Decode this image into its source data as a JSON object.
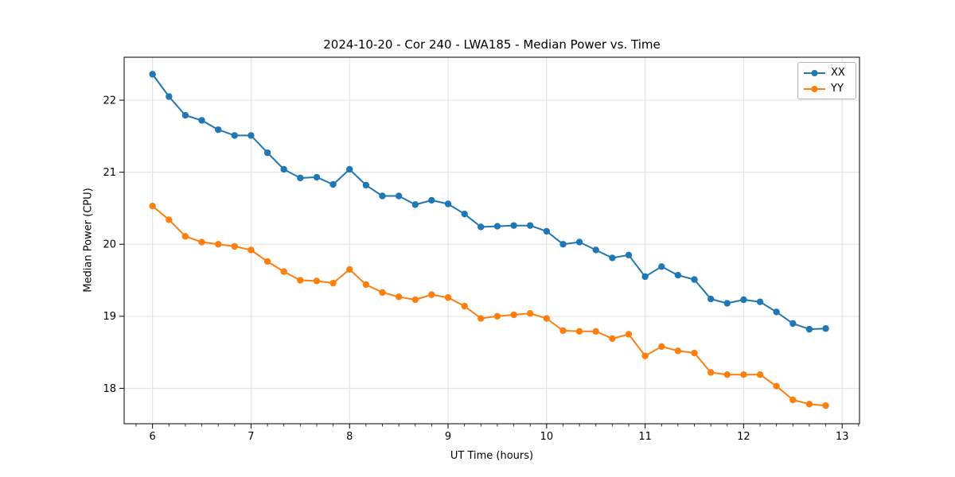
{
  "chart_data": {
    "type": "line",
    "title": "2024-10-20 - Cor 240 - LWA185 - Median Power vs. Time",
    "xlabel": "UT Time (hours)",
    "ylabel": "Median Power (CPU)",
    "xlim": [
      5.712,
      13.176
    ],
    "ylim": [
      17.508,
      22.596
    ],
    "xticks": [
      6,
      7,
      8,
      9,
      10,
      11,
      12,
      13
    ],
    "yticks": [
      18,
      19,
      20,
      21,
      22
    ],
    "x_minor_per_major": 6,
    "grid": true,
    "grid_color": "#e0e0e0",
    "spine_color": "#000000",
    "legend_position": "upper right",
    "x": [
      6.0,
      6.167,
      6.333,
      6.5,
      6.667,
      6.833,
      7.0,
      7.167,
      7.333,
      7.5,
      7.667,
      7.833,
      8.0,
      8.167,
      8.333,
      8.5,
      8.667,
      8.833,
      9.0,
      9.167,
      9.333,
      9.5,
      9.667,
      9.833,
      10.0,
      10.167,
      10.333,
      10.5,
      10.667,
      10.833,
      11.0,
      11.167,
      11.333,
      11.5,
      11.667,
      11.833,
      12.0,
      12.167,
      12.333,
      12.5,
      12.667,
      12.833
    ],
    "series": [
      {
        "name": "XX",
        "color": "#1f77b4",
        "values": [
          22.36,
          22.05,
          21.79,
          21.72,
          21.59,
          21.51,
          21.51,
          21.27,
          21.04,
          20.92,
          20.93,
          20.83,
          21.04,
          20.82,
          20.67,
          20.67,
          20.55,
          20.61,
          20.56,
          20.42,
          20.24,
          20.25,
          20.26,
          20.26,
          20.18,
          20.0,
          20.03,
          19.92,
          19.81,
          19.85,
          19.55,
          19.69,
          19.57,
          19.51,
          19.24,
          19.18,
          19.23,
          19.2,
          19.06,
          18.9,
          18.82,
          18.83
        ]
      },
      {
        "name": "YY",
        "color": "#ff7f0e",
        "values": [
          20.53,
          20.34,
          20.11,
          20.03,
          20.0,
          19.97,
          19.92,
          19.76,
          19.62,
          19.5,
          19.49,
          19.46,
          19.65,
          19.44,
          19.33,
          19.27,
          19.23,
          19.3,
          19.26,
          19.14,
          18.97,
          19.0,
          19.02,
          19.04,
          18.97,
          18.8,
          18.79,
          18.79,
          18.69,
          18.75,
          18.45,
          18.58,
          18.52,
          18.49,
          18.22,
          18.19,
          18.19,
          18.19,
          18.03,
          17.84,
          17.78,
          17.76
        ]
      }
    ]
  }
}
